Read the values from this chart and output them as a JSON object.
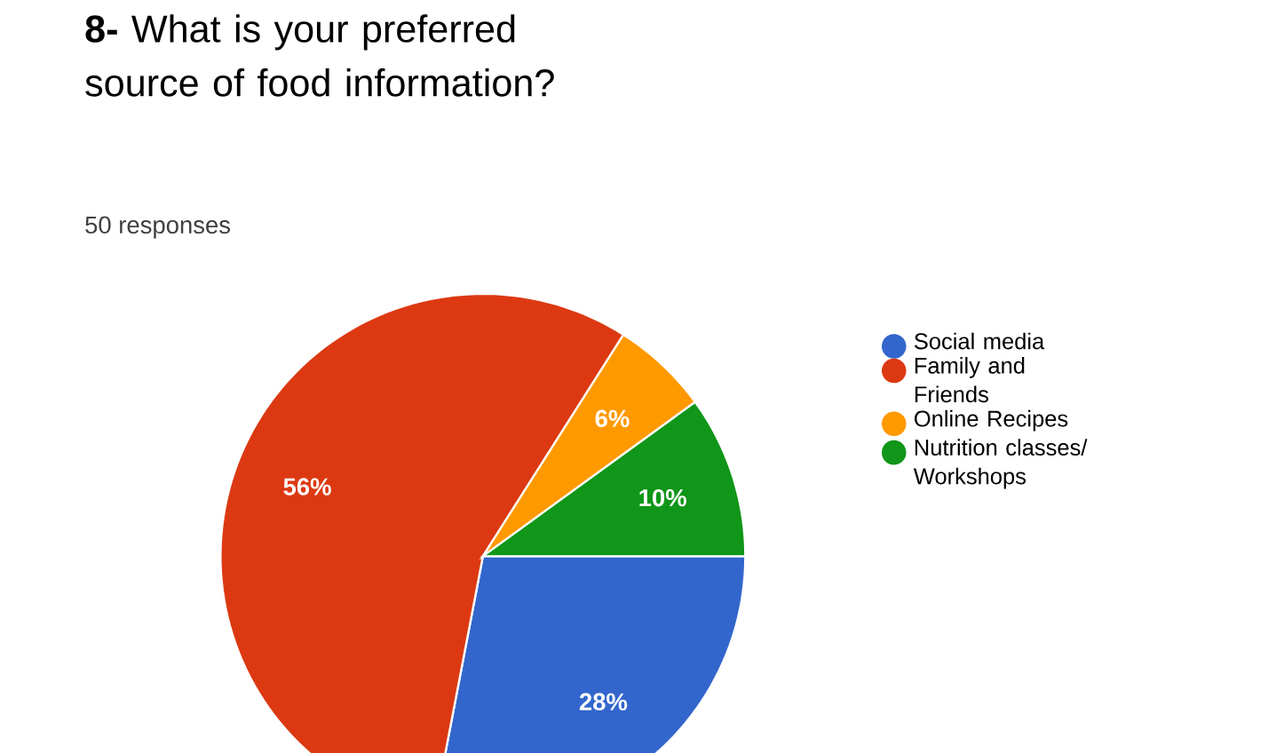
{
  "chart_data": {
    "type": "pie",
    "title": "**8-** What is your preferred source of food information?",
    "subtitle": "50 responses",
    "categories": [
      "Social media",
      "Family and Friends",
      "Online Recipes",
      "Nutrition classes/ Workshops"
    ],
    "values": [
      28,
      56,
      6,
      10
    ],
    "colors": [
      "#3366cc",
      "#dc3912",
      "#ff9900",
      "#109618"
    ],
    "value_labels": [
      "28%",
      "56%",
      "6%",
      "10%"
    ],
    "legend": "right"
  }
}
